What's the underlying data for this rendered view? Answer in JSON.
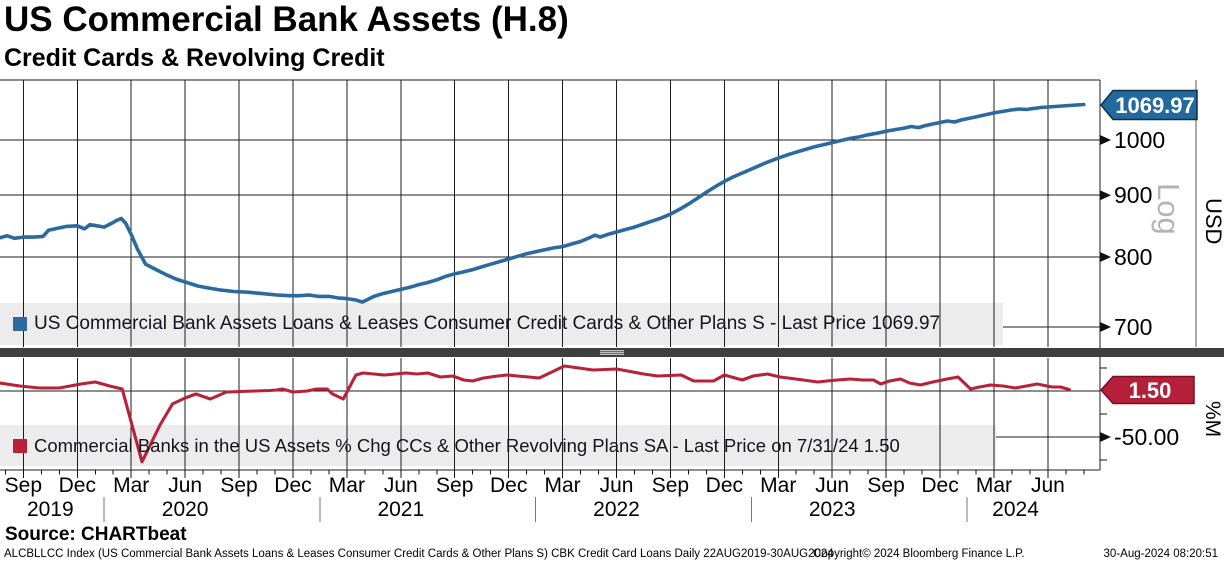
{
  "header": {
    "title": "US Commercial Bank Assets (H.8)",
    "subtitle": "Credit Cards & Revolving Credit"
  },
  "source_line": "Source: CHARTbeat",
  "footer": {
    "description": "ALCBLLCC Index (US Commercial Bank Assets Loans & Leases Consumer Credit Cards & Other Plans S) CBK Credit Card Loans  Daily 22AUG2019-30AUG2024",
    "copyright": "Copyright© 2024 Bloomberg Finance L.P.",
    "timestamp": "30-Aug-2024 08:20:51"
  },
  "colors": {
    "blue_line": "#2b6a9f",
    "red_line": "#b82239",
    "blue_tag_fill": "#226a9d",
    "blue_tag_border": "#0d2f52",
    "red_tag_fill": "#b41f3a",
    "red_tag_border": "#7a0f24",
    "grid": "#1c1c1c",
    "band": "#ececec",
    "separator": "#3d3f40",
    "grip_stripes": "#bdbdbd",
    "log_label": "#b4b4b4",
    "year_separator": "#777777"
  },
  "legends": [
    {
      "marker_color": "#2b6a9f",
      "text": "US Commercial Bank Assets Loans & Leases Consumer Credit Cards & Other Plans S - Last Price 1069.97"
    },
    {
      "marker_color": "#b82239",
      "text": "Commercial Banks in the US Assets % Chg CCs & Other Revolving Plans SA - Last Price on 7/31/24 1.50"
    }
  ],
  "x_axis": {
    "month_ticks": [
      {
        "t": 2,
        "label": "Sep"
      },
      {
        "t": 5,
        "label": "Dec"
      },
      {
        "t": 8,
        "label": "Mar"
      },
      {
        "t": 11,
        "label": "Jun"
      },
      {
        "t": 14,
        "label": "Sep"
      },
      {
        "t": 17,
        "label": "Dec"
      },
      {
        "t": 20,
        "label": "Mar"
      },
      {
        "t": 23,
        "label": "Jun"
      },
      {
        "t": 26,
        "label": "Sep"
      },
      {
        "t": 29,
        "label": "Dec"
      },
      {
        "t": 32,
        "label": "Mar"
      },
      {
        "t": 35,
        "label": "Jun"
      },
      {
        "t": 38,
        "label": "Sep"
      },
      {
        "t": 41,
        "label": "Dec"
      },
      {
        "t": 44,
        "label": "Mar"
      },
      {
        "t": 47,
        "label": "Jun"
      },
      {
        "t": 50,
        "label": "Sep"
      },
      {
        "t": 53,
        "label": "Dec"
      },
      {
        "t": 56,
        "label": "Mar"
      },
      {
        "t": 59,
        "label": "Jun"
      }
    ],
    "year_labels": [
      {
        "t": 3.5,
        "label": "2019"
      },
      {
        "t": 11,
        "label": "2020"
      },
      {
        "t": 23,
        "label": "2021"
      },
      {
        "t": 35,
        "label": "2022"
      },
      {
        "t": 47,
        "label": "2023"
      },
      {
        "t": 57.2,
        "label": "2024"
      }
    ],
    "year_separators_t": [
      6.5,
      18.5,
      30.5,
      42.5,
      54.5
    ],
    "range_note": "x unit = months since Aug-2019; data span 22AUG2019 to 30AUG2024"
  },
  "chart_data": [
    {
      "type": "line",
      "panel": "top",
      "name": "US Commercial Bank Assets Loans & Leases Consumer Credit Cards & Other Plans S",
      "last_price": 1069.97,
      "unit_label": "USD",
      "scale_label": "Log",
      "tag_label": "1069.97",
      "yticks": [
        {
          "v": 1000,
          "label": "1000"
        },
        {
          "v": 900,
          "label": "900"
        },
        {
          "v": 800,
          "label": "800"
        },
        {
          "v": 700,
          "label": "700"
        }
      ],
      "ylim": [
        685,
        1121
      ],
      "grid": true,
      "legend_position": "bottom-left band",
      "points": [
        [
          0.7,
          830
        ],
        [
          1.1,
          833
        ],
        [
          1.5,
          829
        ],
        [
          2.0,
          831
        ],
        [
          2.6,
          831
        ],
        [
          3.1,
          832
        ],
        [
          3.4,
          842
        ],
        [
          3.9,
          845
        ],
        [
          4.4,
          848
        ],
        [
          5.0,
          849
        ],
        [
          5.4,
          844
        ],
        [
          5.7,
          851
        ],
        [
          6.1,
          849
        ],
        [
          6.5,
          847
        ],
        [
          6.9,
          853
        ],
        [
          7.2,
          858
        ],
        [
          7.45,
          861
        ],
        [
          7.7,
          853
        ],
        [
          8.0,
          835
        ],
        [
          8.35,
          812
        ],
        [
          8.8,
          789
        ],
        [
          9.3,
          782
        ],
        [
          9.9,
          774
        ],
        [
          10.5,
          767
        ],
        [
          11.1,
          762
        ],
        [
          11.7,
          757
        ],
        [
          12.3,
          754
        ],
        [
          13.0,
          751
        ],
        [
          13.7,
          749
        ],
        [
          14.5,
          748
        ],
        [
          15.3,
          746
        ],
        [
          16.1,
          744
        ],
        [
          16.8,
          743
        ],
        [
          17.4,
          743
        ],
        [
          17.9,
          744
        ],
        [
          18.4,
          742
        ],
        [
          19.0,
          742
        ],
        [
          19.5,
          740
        ],
        [
          20.0,
          739
        ],
        [
          20.5,
          737
        ],
        [
          20.85,
          734
        ],
        [
          21.1,
          737
        ],
        [
          21.5,
          742
        ],
        [
          22.0,
          746
        ],
        [
          22.5,
          749
        ],
        [
          23.0,
          752
        ],
        [
          23.5,
          755
        ],
        [
          24.0,
          759
        ],
        [
          24.5,
          762
        ],
        [
          25.0,
          766
        ],
        [
          25.5,
          771
        ],
        [
          25.9,
          774
        ],
        [
          26.4,
          777
        ],
        [
          27.0,
          781
        ],
        [
          27.5,
          785
        ],
        [
          28.0,
          789
        ],
        [
          28.5,
          793
        ],
        [
          29.0,
          797
        ],
        [
          29.5,
          801
        ],
        [
          30.0,
          805
        ],
        [
          30.5,
          808
        ],
        [
          31.0,
          811
        ],
        [
          31.5,
          814
        ],
        [
          32.0,
          816
        ],
        [
          32.5,
          820
        ],
        [
          33.0,
          824
        ],
        [
          33.5,
          830
        ],
        [
          33.8,
          834
        ],
        [
          34.1,
          831
        ],
        [
          34.5,
          835
        ],
        [
          35.0,
          839
        ],
        [
          35.5,
          843
        ],
        [
          36.0,
          847
        ],
        [
          36.5,
          852
        ],
        [
          37.0,
          857
        ],
        [
          37.5,
          862
        ],
        [
          38.0,
          868
        ],
        [
          38.5,
          876
        ],
        [
          39.0,
          885
        ],
        [
          39.5,
          895
        ],
        [
          40.0,
          905
        ],
        [
          40.5,
          915
        ],
        [
          41.0,
          924
        ],
        [
          41.5,
          932
        ],
        [
          42.0,
          939
        ],
        [
          42.5,
          946
        ],
        [
          43.0,
          953
        ],
        [
          43.5,
          960
        ],
        [
          44.0,
          966
        ],
        [
          44.5,
          972
        ],
        [
          45.0,
          977
        ],
        [
          45.5,
          982
        ],
        [
          46.0,
          987
        ],
        [
          46.5,
          991
        ],
        [
          47.0,
          995
        ],
        [
          47.5,
          999
        ],
        [
          48.0,
          1003
        ],
        [
          48.5,
          1006
        ],
        [
          49.0,
          1010
        ],
        [
          49.5,
          1013
        ],
        [
          50.0,
          1017
        ],
        [
          50.5,
          1020
        ],
        [
          51.0,
          1023
        ],
        [
          51.4,
          1026
        ],
        [
          51.8,
          1024
        ],
        [
          52.2,
          1028
        ],
        [
          52.6,
          1031
        ],
        [
          53.0,
          1034
        ],
        [
          53.4,
          1037
        ],
        [
          53.8,
          1035
        ],
        [
          54.2,
          1039
        ],
        [
          54.6,
          1042
        ],
        [
          55.0,
          1045
        ],
        [
          55.5,
          1049
        ],
        [
          56.0,
          1053
        ],
        [
          56.5,
          1056
        ],
        [
          57.0,
          1059
        ],
        [
          57.4,
          1061
        ],
        [
          57.8,
          1060
        ],
        [
          58.2,
          1062
        ],
        [
          58.6,
          1064
        ],
        [
          59.0,
          1065
        ],
        [
          59.4,
          1066
        ],
        [
          59.8,
          1067
        ],
        [
          60.2,
          1068
        ],
        [
          60.6,
          1069
        ],
        [
          61.0,
          1069.97
        ]
      ]
    },
    {
      "type": "line",
      "panel": "bottom",
      "name": "Commercial Banks in the US Assets % Chg CCs & Other Revolving Plans SA",
      "last_price": 1.5,
      "last_price_date": "7/31/24",
      "unit_label": "%M",
      "tag_label": "1.50",
      "yticks": [
        {
          "v": -50,
          "label": "-50.00"
        }
      ],
      "yticks_minor": [
        25,
        -25,
        -75
      ],
      "ylim": [
        -86,
        36
      ],
      "grid": true,
      "zero_line": true,
      "points": [
        [
          0.7,
          8.7
        ],
        [
          1.8,
          5.4
        ],
        [
          2.9,
          3.3
        ],
        [
          4.0,
          3.3
        ],
        [
          5.2,
          7.6
        ],
        [
          6.0,
          9.8
        ],
        [
          6.8,
          5.4
        ],
        [
          7.5,
          2.2
        ],
        [
          8.6,
          -77
        ],
        [
          9.6,
          -37
        ],
        [
          10.3,
          -14
        ],
        [
          11.0,
          -7.6
        ],
        [
          11.6,
          -3.3
        ],
        [
          12.4,
          -8.7
        ],
        [
          13.3,
          -1.1
        ],
        [
          14.1,
          -0.5
        ],
        [
          14.9,
          0
        ],
        [
          15.7,
          0.5
        ],
        [
          16.1,
          1.1
        ],
        [
          16.4,
          2.2
        ],
        [
          17.0,
          -1.1
        ],
        [
          17.8,
          0
        ],
        [
          18.3,
          2.2
        ],
        [
          18.9,
          2.2
        ],
        [
          19.2,
          -3.3
        ],
        [
          19.8,
          -8.7
        ],
        [
          20.5,
          17.4
        ],
        [
          20.9,
          19.6
        ],
        [
          21.5,
          18.5
        ],
        [
          22.1,
          17.4
        ],
        [
          22.7,
          18.5
        ],
        [
          23.3,
          19.6
        ],
        [
          23.9,
          18.5
        ],
        [
          24.5,
          19.6
        ],
        [
          25.2,
          15.2
        ],
        [
          25.9,
          16.3
        ],
        [
          26.5,
          12
        ],
        [
          27.0,
          10.9
        ],
        [
          27.6,
          14.1
        ],
        [
          28.4,
          16.3
        ],
        [
          28.9,
          17.4
        ],
        [
          29.5,
          16.3
        ],
        [
          30.7,
          14.1
        ],
        [
          32.1,
          27.2
        ],
        [
          33.7,
          22.8
        ],
        [
          35.0,
          23.9
        ],
        [
          36.5,
          18.5
        ],
        [
          37.3,
          16.3
        ],
        [
          38.6,
          17.4
        ],
        [
          39.3,
          10.9
        ],
        [
          40.4,
          10.9
        ],
        [
          41.0,
          17.4
        ],
        [
          42.0,
          12
        ],
        [
          42.6,
          16.3
        ],
        [
          43.4,
          18.5
        ],
        [
          44.1,
          15.2
        ],
        [
          45.4,
          12
        ],
        [
          46.2,
          9.8
        ],
        [
          46.7,
          10.9
        ],
        [
          47.3,
          12
        ],
        [
          48.0,
          13
        ],
        [
          48.7,
          12
        ],
        [
          49.3,
          12
        ],
        [
          49.7,
          7.6
        ],
        [
          50.2,
          10.9
        ],
        [
          50.8,
          13
        ],
        [
          51.3,
          8.7
        ],
        [
          51.9,
          6.5
        ],
        [
          52.6,
          9.8
        ],
        [
          53.4,
          13
        ],
        [
          54.0,
          15.2
        ],
        [
          54.7,
          2.2
        ],
        [
          55.2,
          4.3
        ],
        [
          55.8,
          6.5
        ],
        [
          56.5,
          5.4
        ],
        [
          57.2,
          3.3
        ],
        [
          58.4,
          7.6
        ],
        [
          59.2,
          4.5
        ],
        [
          59.7,
          4.3
        ],
        [
          60.2,
          1.5
        ]
      ]
    }
  ]
}
